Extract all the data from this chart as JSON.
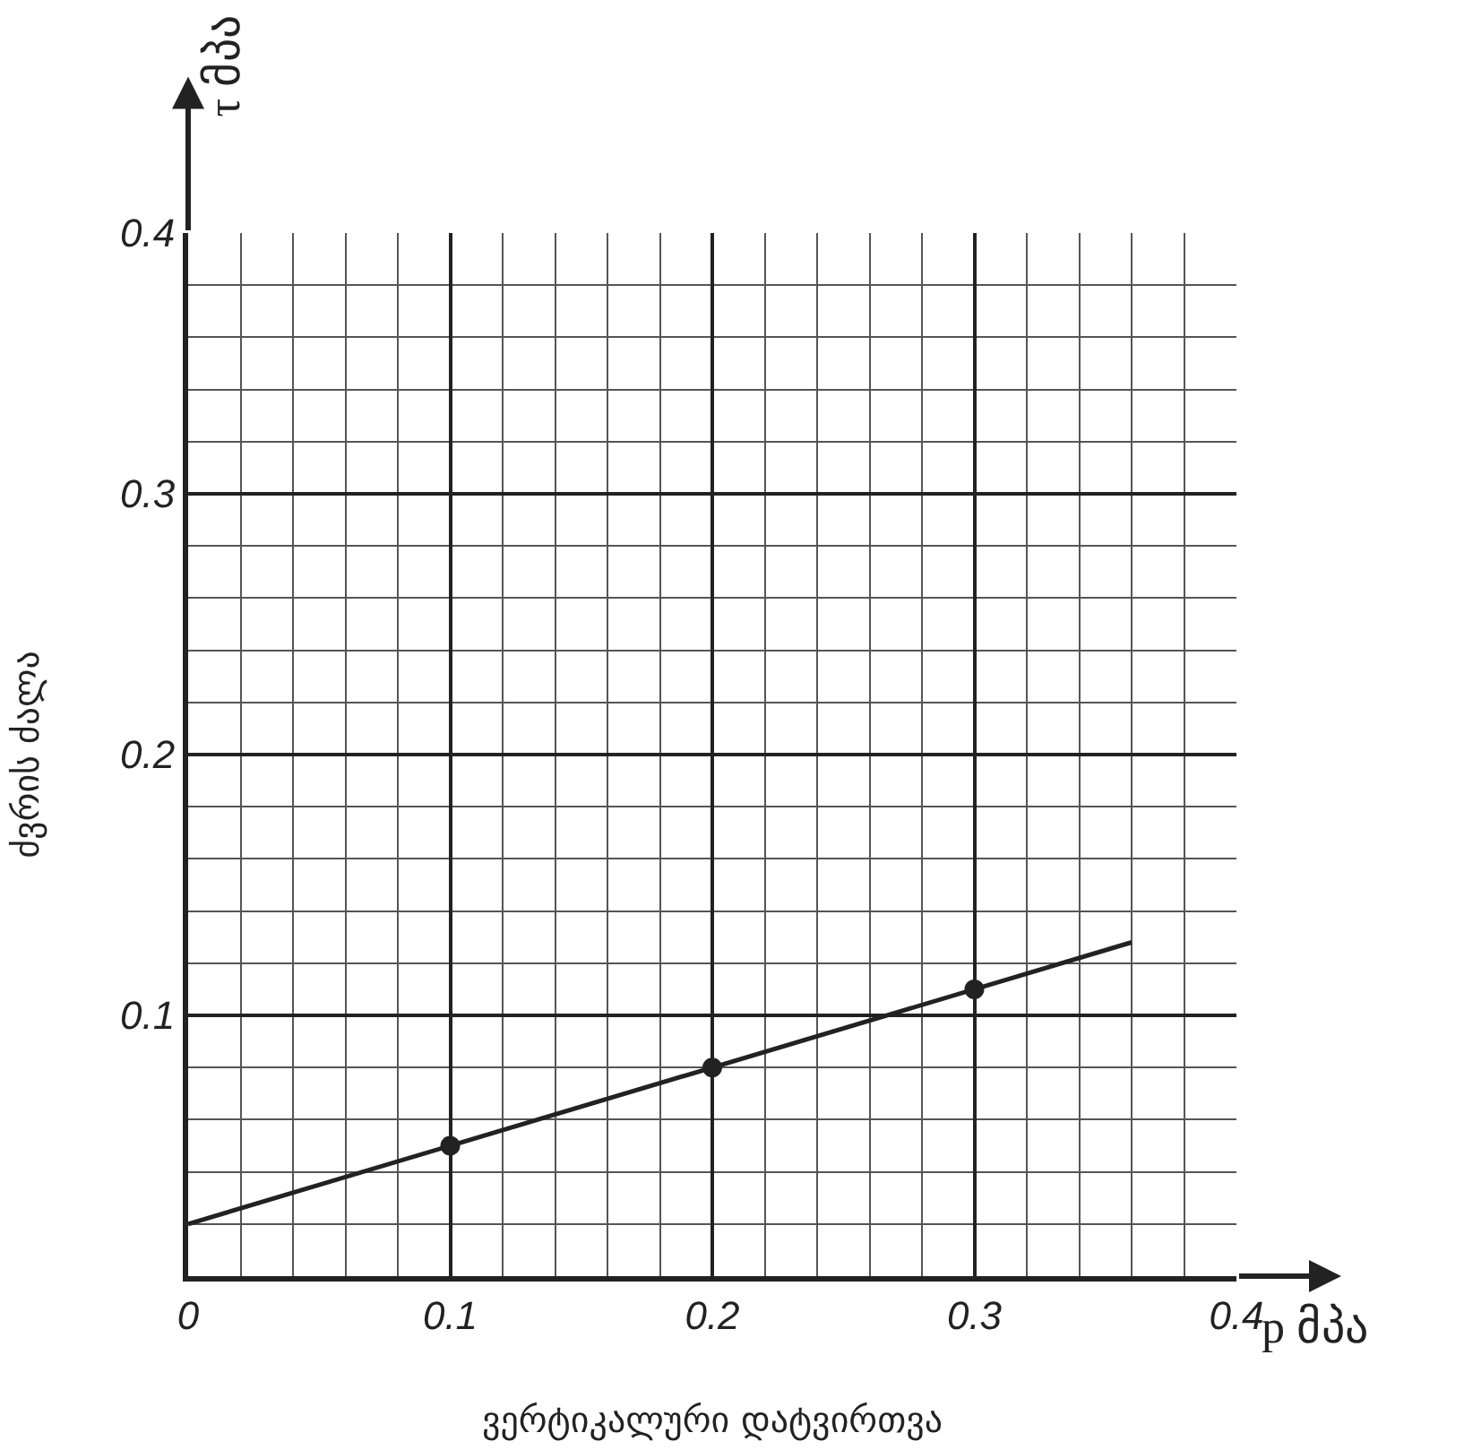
{
  "chart_data": {
    "type": "scatter",
    "xlabel": "ვერტიკალური დატვირთვა",
    "ylabel": "ძვრის ძალა",
    "annotations": [
      "p მპა",
      "τ მპა"
    ],
    "xlim": [
      0,
      0.4
    ],
    "ylim": [
      0,
      0.4
    ],
    "xticks": [
      0,
      0.1,
      0.2,
      0.3,
      0.4
    ],
    "yticks": [
      0.1,
      0.2,
      0.3,
      0.4
    ],
    "grid": true,
    "series": [
      {
        "type": "line",
        "color": "#222222",
        "x": [
          0,
          0.36
        ],
        "values": [
          0.02,
          0.128
        ],
        "marker": "none",
        "line_style": "solid"
      },
      {
        "color": "#222222",
        "x": [
          0.1,
          0.2,
          0.3
        ],
        "values": [
          0.05,
          0.08,
          0.11
        ],
        "marker": "circle"
      }
    ]
  }
}
